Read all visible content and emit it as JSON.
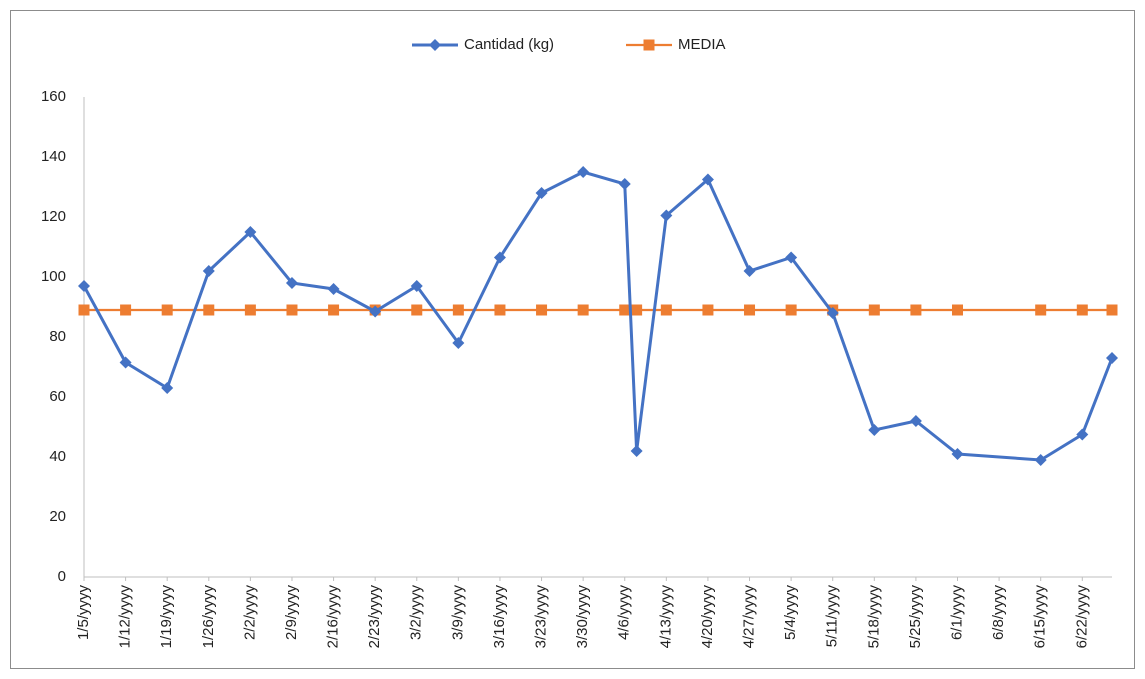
{
  "chart_data": {
    "type": "line",
    "x": [
      "1/5/yyyy",
      "1/12/yyyy",
      "1/19/yyyy",
      "1/26/yyyy",
      "2/2/yyyy",
      "2/9/yyyy",
      "2/16/yyyy",
      "2/23/yyyy",
      "3/2/yyyy",
      "3/9/yyyy",
      "3/16/yyyy",
      "3/23/yyyy",
      "3/30/yyyy",
      "4/6/yyyy",
      "4/8/yyyy",
      "4/13/yyyy",
      "4/20/yyyy",
      "4/27/yyyy",
      "5/4/yyyy",
      "5/11/yyyy",
      "5/18/yyyy",
      "5/25/yyyy",
      "6/1/yyyy",
      "6/15/yyyy",
      "6/22/yyyy",
      "6/27/yyyy"
    ],
    "series": [
      {
        "name": "Cantidad (kg)",
        "color": "#4472c4",
        "values": [
          97,
          71.5,
          63,
          102,
          115,
          98,
          96,
          88.5,
          97,
          78,
          106.5,
          128,
          135,
          131,
          42,
          120.5,
          132.5,
          102,
          106.5,
          88,
          49,
          52,
          41,
          39,
          47.5,
          73
        ]
      },
      {
        "name": "MEDIA",
        "color": "#ed7d31",
        "values": [
          89,
          89,
          89,
          89,
          89,
          89,
          89,
          89,
          89,
          89,
          89,
          89,
          89,
          89,
          89,
          89,
          89,
          89,
          89,
          89,
          89,
          89,
          89,
          89,
          89,
          89
        ]
      }
    ],
    "xlim": [
      "1/5/yyyy",
      "6/27/yyyy"
    ],
    "xticks": [
      "1/5/yyyy",
      "1/12/yyyy",
      "1/19/yyyy",
      "1/26/yyyy",
      "2/2/yyyy",
      "2/9/yyyy",
      "2/16/yyyy",
      "2/23/yyyy",
      "3/2/yyyy",
      "3/9/yyyy",
      "3/16/yyyy",
      "3/23/yyyy",
      "3/30/yyyy",
      "4/6/yyyy",
      "4/13/yyyy",
      "4/20/yyyy",
      "4/27/yyyy",
      "5/4/yyyy",
      "5/11/yyyy",
      "5/18/yyyy",
      "5/25/yyyy",
      "6/1/yyyy",
      "6/8/yyyy",
      "6/15/yyyy",
      "6/22/yyyy"
    ],
    "ylim": [
      0,
      160
    ],
    "yticks": [
      0,
      20,
      40,
      60,
      80,
      100,
      120,
      140,
      160
    ],
    "legend": "top",
    "grid": false
  }
}
